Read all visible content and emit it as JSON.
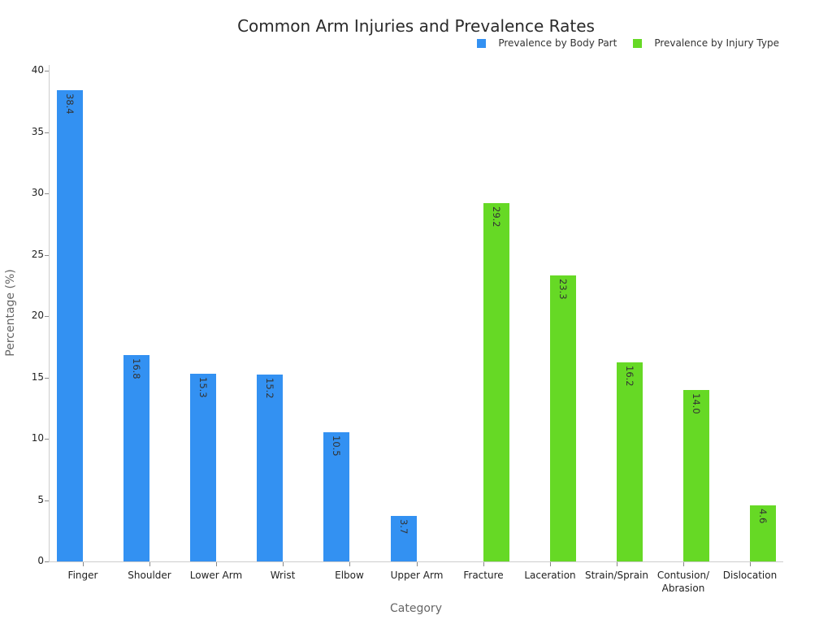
{
  "chart_data": {
    "type": "bar",
    "title": "Common Arm Injuries and Prevalence Rates",
    "xlabel": "Category",
    "ylabel": "Percentage (%)",
    "ylim": [
      0,
      40
    ],
    "yticks": [
      0,
      5,
      10,
      15,
      20,
      25,
      30,
      35,
      40
    ],
    "grid": false,
    "legend_position": "top-right",
    "categories": [
      "Finger",
      "Shoulder",
      "Lower Arm",
      "Wrist",
      "Elbow",
      "Upper Arm",
      "Fracture",
      "Laceration",
      "Strain/Sprain",
      "Contusion/\nAbrasion",
      "Dislocation"
    ],
    "series": [
      {
        "name": "Prevalence by Body Part",
        "color": "#3391f2",
        "values": [
          38.4,
          16.8,
          15.3,
          15.2,
          10.5,
          3.7,
          null,
          null,
          null,
          null,
          null
        ]
      },
      {
        "name": "Prevalence by Injury Type",
        "color": "#66d925",
        "values": [
          null,
          null,
          null,
          null,
          null,
          null,
          29.2,
          23.3,
          16.2,
          14.0,
          4.6
        ]
      }
    ]
  },
  "labels": {
    "title": "Common Arm Injuries and Prevalence Rates",
    "xlabel": "Category",
    "ylabel": "Percentage (%)",
    "legend": [
      "Prevalence by Body Part",
      "Prevalence by Injury Type"
    ]
  }
}
